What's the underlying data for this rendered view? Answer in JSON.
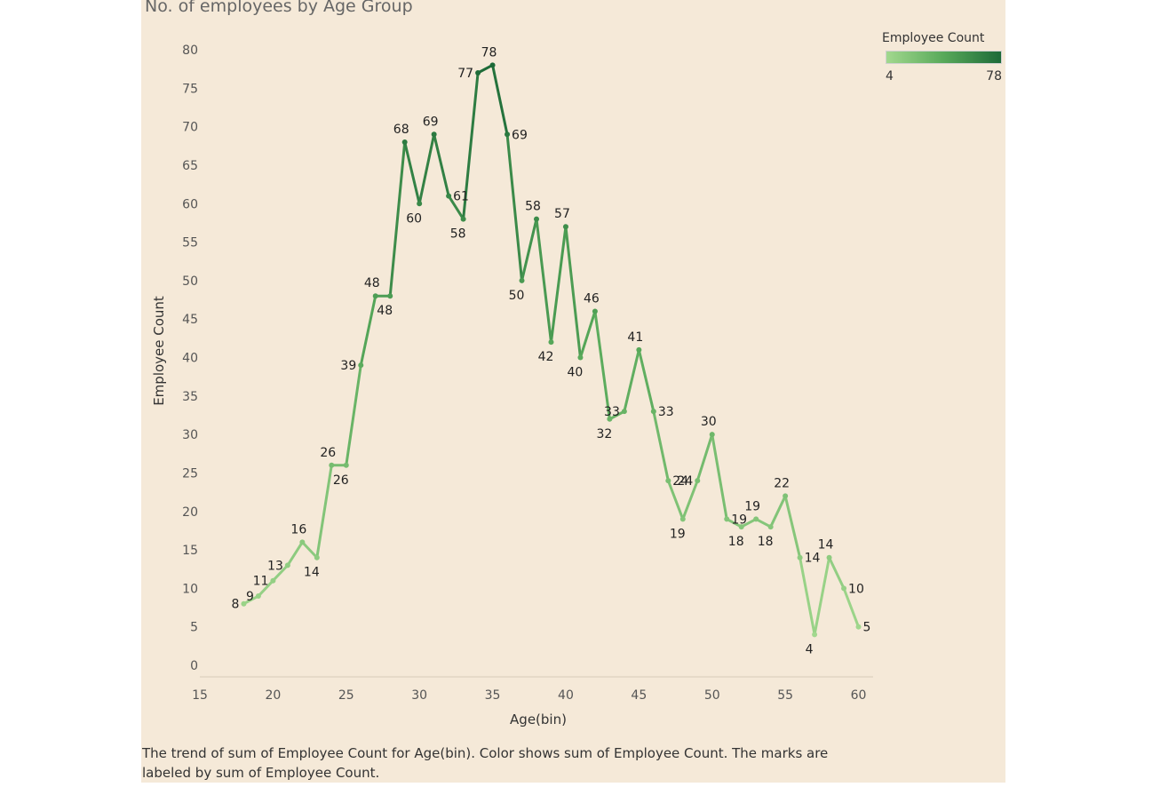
{
  "title": "No. of employees by Age Group",
  "caption": "The trend of sum of Employee Count for Age(bin).  Color shows sum of Employee Count.  The marks are labeled by sum of Employee Count.",
  "legend": {
    "title": "Employee Count",
    "min_label": "4",
    "max_label": "78",
    "colors": [
      "#a2d88e",
      "#58a95a",
      "#1d6a38"
    ]
  },
  "chart_data": {
    "type": "line",
    "xlabel": "Age(bin)",
    "ylabel": "Employee Count",
    "xlim": [
      15,
      61
    ],
    "ylim": [
      0,
      80
    ],
    "x_ticks": [
      15,
      20,
      25,
      30,
      35,
      40,
      45,
      50,
      55,
      60
    ],
    "y_ticks": [
      0,
      5,
      10,
      15,
      20,
      25,
      30,
      35,
      40,
      45,
      50,
      55,
      60,
      65,
      70,
      75,
      80
    ],
    "grid": false,
    "legend_position": "top-right",
    "x": [
      18,
      19,
      20,
      21,
      22,
      23,
      24,
      25,
      26,
      27,
      28,
      29,
      30,
      31,
      32,
      33,
      34,
      35,
      36,
      37,
      38,
      39,
      40,
      41,
      42,
      43,
      44,
      45,
      46,
      47,
      48,
      49,
      50,
      51,
      52,
      53,
      54,
      55,
      56,
      57,
      58,
      59,
      60
    ],
    "values": [
      8,
      9,
      11,
      13,
      16,
      14,
      26,
      26,
      39,
      48,
      48,
      68,
      60,
      69,
      61,
      58,
      77,
      78,
      69,
      50,
      58,
      42,
      57,
      40,
      46,
      32,
      33,
      41,
      33,
      24,
      19,
      24,
      30,
      19,
      18,
      19,
      18,
      22,
      14,
      4,
      14,
      10,
      5
    ],
    "point_labels": [
      "8",
      "9",
      "11",
      "13",
      "16",
      "14",
      "26",
      "26",
      "39",
      "48",
      "48",
      "68",
      "60",
      "69",
      "61",
      "58",
      "77",
      "78",
      "69",
      "50",
      "58",
      "42",
      "57",
      "40",
      "46",
      "32",
      "33",
      "41",
      "33",
      "24",
      "19",
      "24",
      "30",
      "19",
      "18",
      "19",
      "18",
      "22",
      "14",
      "4",
      "14",
      "10",
      "5"
    ]
  }
}
